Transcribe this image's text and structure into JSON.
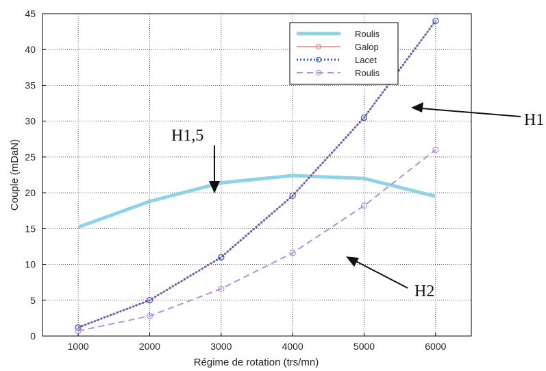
{
  "chart_data": {
    "type": "line",
    "xlabel": "Régime de rotation (trs/mn)",
    "ylabel": "Couple (mDaN)",
    "xlim": [
      500,
      6500
    ],
    "ylim": [
      0,
      45
    ],
    "xticks": [
      1000,
      2000,
      3000,
      4000,
      5000,
      6000
    ],
    "yticks": [
      0,
      5,
      10,
      15,
      20,
      25,
      30,
      35,
      40,
      45
    ],
    "grid": true,
    "legend_position": "top-right",
    "x": [
      1000,
      2000,
      3000,
      4000,
      5000,
      6000
    ],
    "series": [
      {
        "name": "Roulis",
        "values": [
          15.2,
          18.8,
          21.4,
          22.4,
          22.0,
          19.5
        ],
        "color": "#8fd3e6",
        "style": "solid-thick",
        "marker": "none"
      },
      {
        "name": "Galop",
        "values": [
          1.2,
          5.0,
          11.0,
          19.6,
          30.5,
          44.0
        ],
        "color": "#e8807a",
        "style": "solid",
        "marker": "circle"
      },
      {
        "name": "Lacet",
        "values": [
          1.2,
          5.0,
          11.0,
          19.6,
          30.5,
          44.0
        ],
        "color": "#2f55d4",
        "style": "dotted",
        "marker": "circle"
      },
      {
        "name": "Roulis",
        "values": [
          0.7,
          2.8,
          6.6,
          11.6,
          18.2,
          26.0
        ],
        "color": "#b48de0",
        "style": "dashed",
        "marker": "circle"
      }
    ],
    "annotations": [
      {
        "text": "H1",
        "points_to_x": 5400,
        "points_to_y": 31.5
      },
      {
        "text": "H1,5",
        "points_to_x": 2700,
        "points_to_y": 20.0
      },
      {
        "text": "H2",
        "points_to_x": 4400,
        "points_to_y": 11.0
      }
    ]
  }
}
